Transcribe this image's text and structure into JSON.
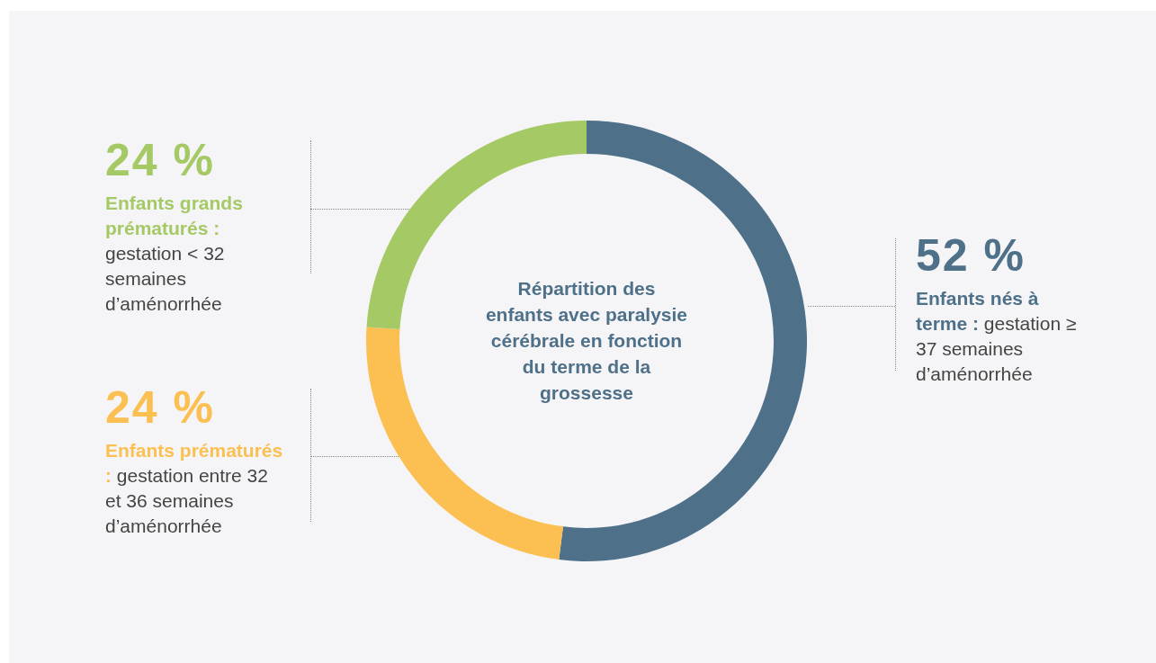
{
  "chart_data": {
    "type": "donut",
    "title": "Répartition des enfants avec paralysie cérébrale en fonction du terme de la grossesse",
    "categories": [
      "Enfants nés à terme : gestation ≥ 37 semaines d’aménorrhée",
      "Enfants prématurés : gestation entre 32 et 36 semaines d’aménorrhée",
      "Enfants grands prématurés : gestation < 32 semaines d’aménorrhée"
    ],
    "values": [
      52,
      24,
      24
    ],
    "colors": [
      "#4e7089",
      "#fbbf52",
      "#a5c964"
    ],
    "value_labels": [
      "52 %",
      "24 %",
      "24 %"
    ],
    "legend": false
  }
}
